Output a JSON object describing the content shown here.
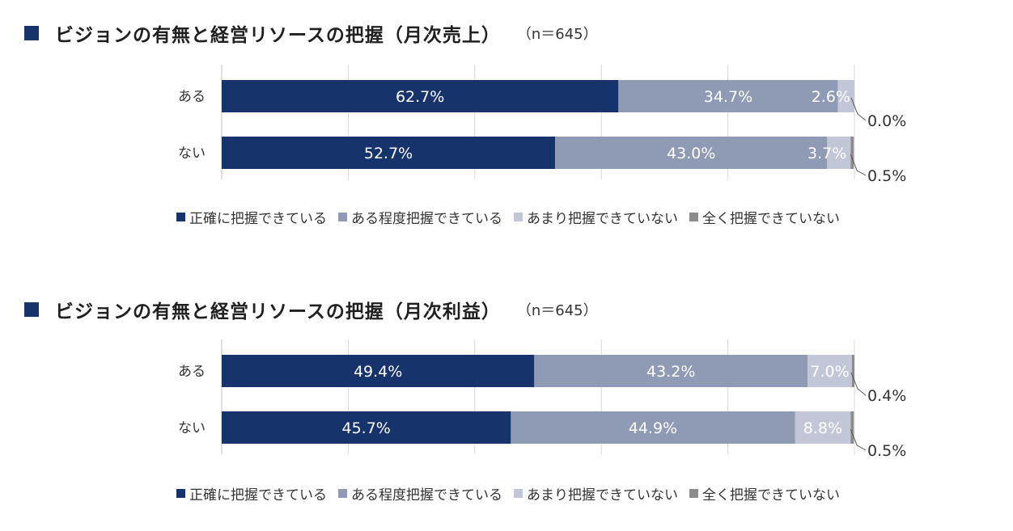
{
  "colors": {
    "title_square": "#17336b",
    "gridline": "#d9d9d9",
    "axis": "#bfbfbf",
    "category_text": "#333333",
    "label_in_bar": "#ffffff",
    "label_outside": "#333333",
    "leader_line": "#555555"
  },
  "legend": [
    {
      "label": "正確に把握できている",
      "color": "#17336b"
    },
    {
      "label": "ある程度把握できている",
      "color": "#8f9ab5"
    },
    {
      "label": "あまり把握できていない",
      "color": "#c2c7d8"
    },
    {
      "label": "全く把握できていない",
      "color": "#8c8c8c"
    }
  ],
  "chart_data": [
    {
      "type": "bar",
      "orientation": "horizontal",
      "stacked": "percent",
      "title": "ビジョンの有無と経営リソースの把握（月次売上）",
      "note": "（n＝645）",
      "categories": [
        "ある",
        "ない"
      ],
      "xlim": [
        0,
        100
      ],
      "grid": true,
      "legend_position": "bottom",
      "series": [
        {
          "name": "正確に把握できている",
          "values": [
            62.7,
            52.7
          ],
          "labels": [
            "62.7%",
            "52.7%"
          ]
        },
        {
          "name": "ある程度把握できている",
          "values": [
            34.7,
            43.0
          ],
          "labels": [
            "34.7%",
            "43.0%"
          ]
        },
        {
          "name": "あまり把握できていない",
          "values": [
            2.6,
            3.7
          ],
          "labels": [
            "2.6%",
            "3.7%"
          ]
        },
        {
          "name": "全く把握できていない",
          "values": [
            0.0,
            0.5
          ],
          "labels": [
            "0.0%",
            "0.5%"
          ]
        }
      ]
    },
    {
      "type": "bar",
      "orientation": "horizontal",
      "stacked": "percent",
      "title": "ビジョンの有無と経営リソースの把握（月次利益）",
      "note": "（n＝645）",
      "categories": [
        "ある",
        "ない"
      ],
      "xlim": [
        0,
        100
      ],
      "grid": true,
      "legend_position": "bottom",
      "series": [
        {
          "name": "正確に把握できている",
          "values": [
            49.4,
            45.7
          ],
          "labels": [
            "49.4%",
            "45.7%"
          ]
        },
        {
          "name": "ある程度把握できている",
          "values": [
            43.2,
            44.9
          ],
          "labels": [
            "43.2%",
            "44.9%"
          ]
        },
        {
          "name": "あまり把握できていない",
          "values": [
            7.0,
            8.8
          ],
          "labels": [
            "7.0%",
            "8.8%"
          ]
        },
        {
          "name": "全く把握できていない",
          "values": [
            0.4,
            0.5
          ],
          "labels": [
            "0.4%",
            "0.5%"
          ]
        }
      ]
    }
  ]
}
